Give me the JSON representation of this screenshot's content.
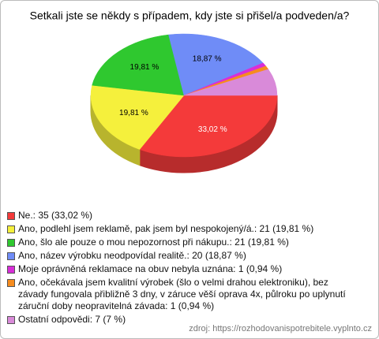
{
  "chart_data": {
    "type": "pie3d",
    "title": "Setkali jste se někdy s případem, kdy jste si přišel/a podveden/a?",
    "categories": [
      "Ne.: 35 (33,02 %)",
      "Ano, podlehl jsem reklamě, pak jsem byl nespokojený/á.: 21 (19,81 %)",
      "Ano, šlo ale pouze o mou nepozornost při nákupu.: 21 (19,81 %)",
      "Ano, název výrobku neodpovídal realitě.: 20 (18,87 %)",
      "Moje oprávněná reklamace na obuv nebyla uznána: 1 (0,94 %)",
      "Ano, očekávala jsem kvalitní výrobek (šlo o velmi drahou elektroniku), bez závady fungovala přibližně 3 dny, v záruce věší oprava 4x, půlroku po uplynutí záruční doby neopravitelná závada: 1 (0,94 %)",
      "Ostatní odpovědi: 7 (7 %)"
    ],
    "values": [
      33.02,
      19.81,
      19.81,
      18.87,
      0.94,
      0.94,
      7
    ],
    "value_labels": [
      "33,02 %",
      "19,81 %",
      "19,81 %",
      "18,87 %",
      null,
      null,
      null
    ],
    "colors": [
      "#f43a3a",
      "#f5f03c",
      "#2fc82f",
      "#6f8cf7",
      "#d82ed8",
      "#f68c1e",
      "#d98ad9"
    ],
    "source": "zdroj: https://rozhodovanispotrebitele.vyplnto.cz"
  }
}
